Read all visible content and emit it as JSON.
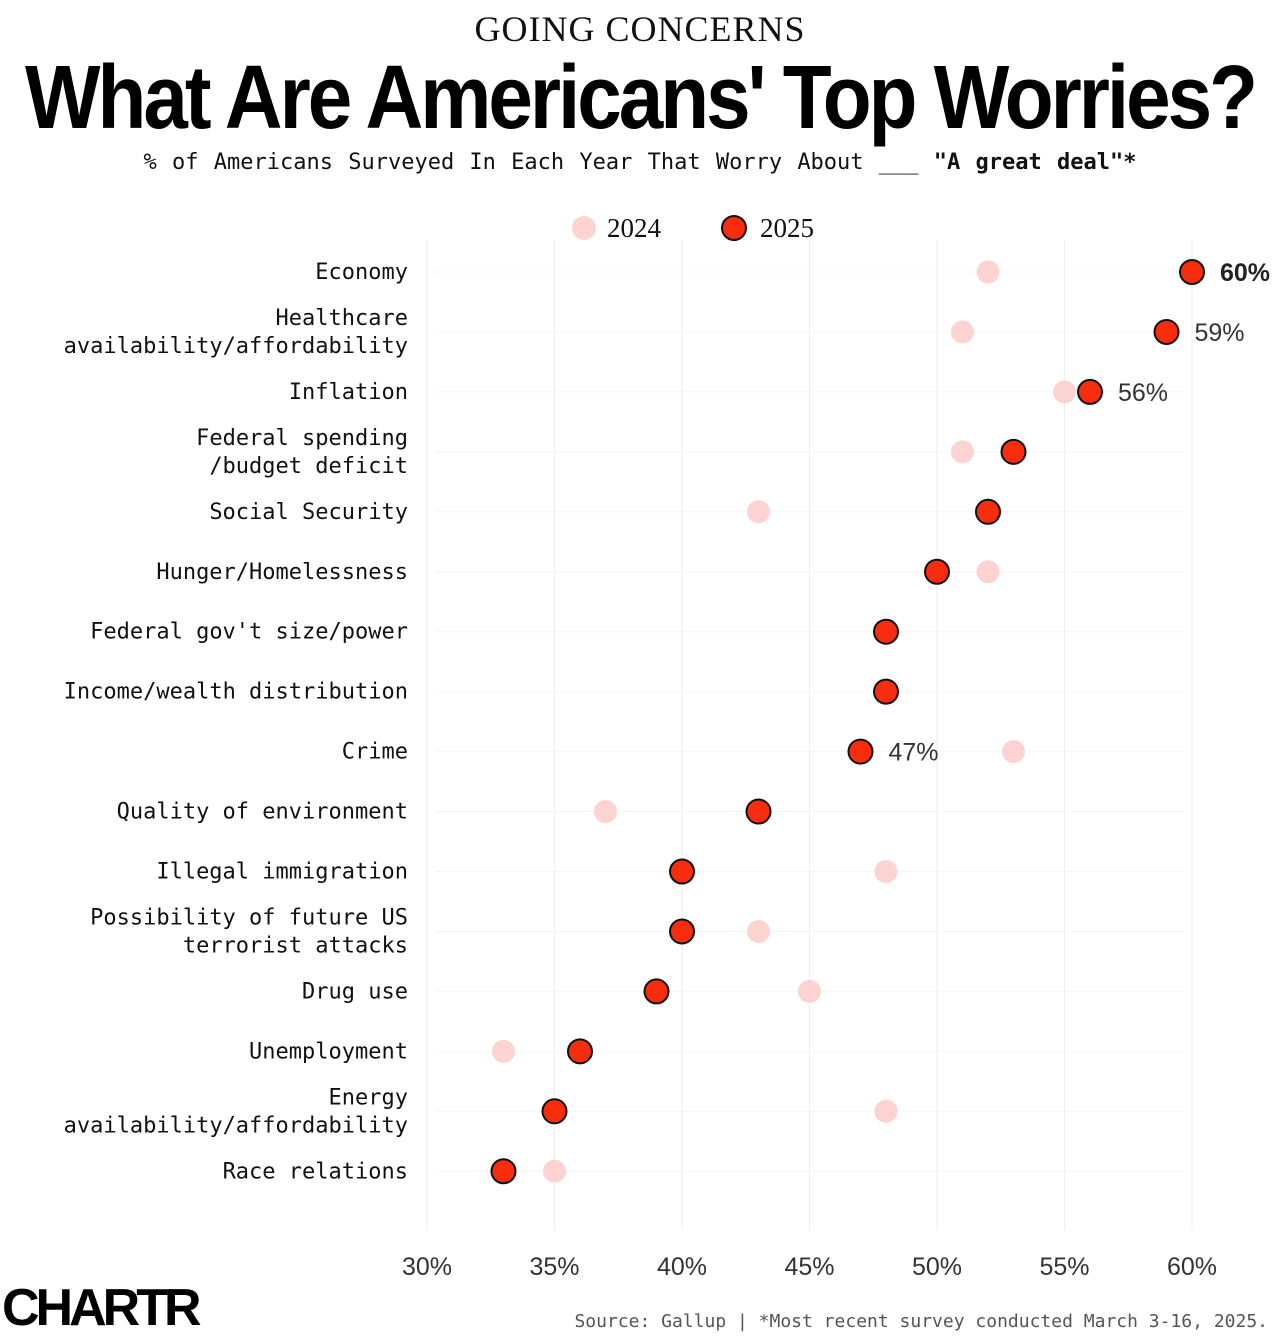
{
  "kicker": "GOING CONCERNS",
  "title": "What Are Americans' Top Worries?",
  "subtitle_prefix": "% of Americans Surveyed In Each Year That Worry About ___ ",
  "subtitle_emphasis": "\"A great deal\"*",
  "colors": {
    "series_2024": "#fcd3d1",
    "series_2025": "#f72d0e",
    "grid": "#eeeeee",
    "text": "#111111"
  },
  "chart_data": {
    "type": "scatter",
    "title": "What Are Americans' Top Worries?",
    "xlabel": "",
    "ylabel": "",
    "xlim": [
      30,
      60
    ],
    "xticks": [
      "30%",
      "35%",
      "40%",
      "45%",
      "50%",
      "55%",
      "60%"
    ],
    "xtick_values": [
      30,
      35,
      40,
      45,
      50,
      55,
      60
    ],
    "legend": {
      "position": "top",
      "entries": [
        "2024",
        "2025"
      ]
    },
    "categories": [
      [
        "Economy"
      ],
      [
        "Healthcare",
        "availability/affordability"
      ],
      [
        "Inflation"
      ],
      [
        "Federal spending",
        "/budget deficit"
      ],
      [
        "Social Security"
      ],
      [
        "Hunger/Homelessness"
      ],
      [
        "Federal gov't size/power"
      ],
      [
        "Income/wealth distribution"
      ],
      [
        "Crime"
      ],
      [
        "Quality of environment"
      ],
      [
        "Illegal immigration"
      ],
      [
        "Possibility of future US",
        "terrorist attacks"
      ],
      [
        "Drug use"
      ],
      [
        "Unemployment"
      ],
      [
        "Energy",
        "availability/affordability"
      ],
      [
        "Race relations"
      ]
    ],
    "series": [
      {
        "name": "2024",
        "values": [
          52,
          51,
          55,
          51,
          43,
          52,
          48,
          48,
          53,
          37,
          48,
          43,
          45,
          33,
          48,
          35
        ]
      },
      {
        "name": "2025",
        "values": [
          60,
          59,
          56,
          53,
          52,
          50,
          48,
          48,
          47,
          43,
          40,
          40,
          39,
          36,
          35,
          33
        ]
      }
    ],
    "data_labels": [
      {
        "index": 0,
        "text": "60%",
        "bold": true
      },
      {
        "index": 1,
        "text": "59%",
        "bold": false
      },
      {
        "index": 2,
        "text": "56%",
        "bold": false
      },
      {
        "index": 8,
        "text": "47%",
        "bold": false
      }
    ]
  },
  "footer": {
    "logo": "CHARTR",
    "source": "Source: Gallup | *Most recent survey conducted March 3-16, 2025."
  }
}
